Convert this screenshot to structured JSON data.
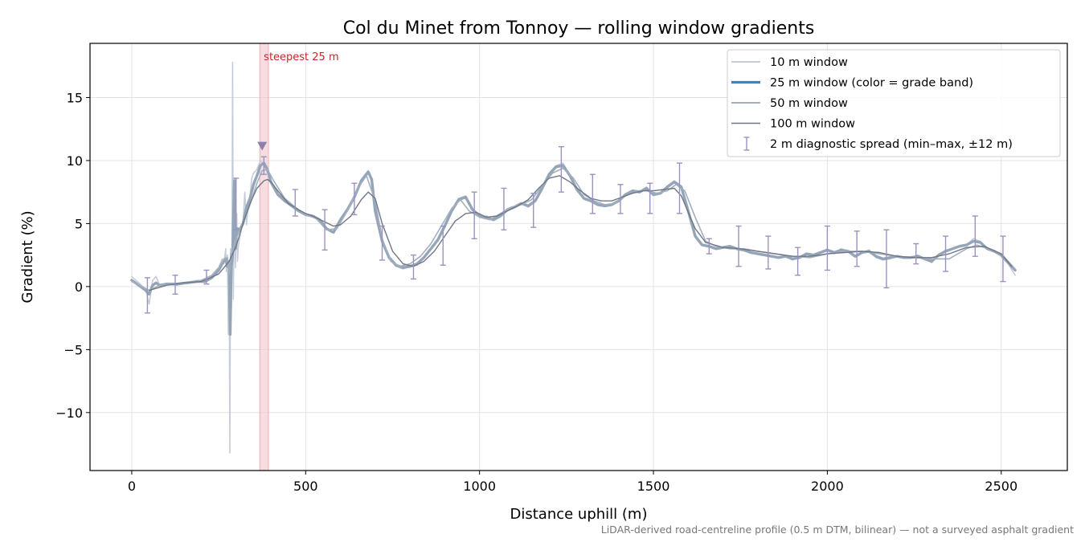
{
  "chart_data": {
    "type": "line",
    "title": "Col du Minet from Tonnoy — rolling window gradients",
    "xlabel": "Distance uphill (m)",
    "ylabel": "Gradient (%)",
    "xlim": [
      -120,
      2690
    ],
    "ylim": [
      -14.6,
      19.3
    ],
    "x_ticks": [
      0,
      500,
      1000,
      1500,
      2000,
      2500
    ],
    "x_tick_labels": [
      "0",
      "500",
      "1000",
      "1500",
      "2000",
      "2500"
    ],
    "y_ticks": [
      -10,
      -5,
      0,
      5,
      10,
      15
    ],
    "y_tick_labels": [
      "−10",
      "−5",
      "0",
      "5",
      "10",
      "15"
    ],
    "grid": true,
    "legend_position": "top-right",
    "note": "LiDAR-derived road-centreline profile (0.5 m DTM, bilinear) — not a surveyed asphalt gradient",
    "steepest_label": "steepest 25 m",
    "steepest_band": [
      368,
      393
    ],
    "steepest_marker": {
      "x": 375,
      "y": 11.1
    },
    "colors": {
      "w10": "#c5cdd8",
      "w25": "#3b7dd8",
      "w25_drawn": "#95a5b8",
      "w50": "#a3aebf",
      "w100": "#6f7786",
      "errorbar": "#9a92bf",
      "band": "#f4c7cb",
      "marker": "#8e80ad"
    },
    "series": [
      {
        "name": "10 m window",
        "key": "w10",
        "x": [
          0,
          20,
          40,
          50,
          60,
          70,
          80,
          100,
          130,
          160,
          190,
          210,
          230,
          240,
          250,
          260,
          265,
          270,
          272,
          275,
          278,
          280,
          282,
          284,
          286,
          288,
          290,
          292,
          294,
          296,
          298,
          300,
          302,
          304,
          306,
          308,
          310,
          315,
          320,
          325,
          330,
          335,
          340,
          345,
          350,
          360,
          370,
          380,
          390,
          400,
          420,
          440,
          460,
          480,
          500,
          520,
          540,
          560,
          580,
          600,
          620,
          640,
          660,
          680,
          690,
          700,
          720,
          740,
          760,
          780,
          800,
          820,
          840,
          860,
          880,
          900,
          920,
          940,
          960,
          980,
          1000,
          1020,
          1040,
          1060,
          1080,
          1100,
          1120,
          1140,
          1160,
          1180,
          1200,
          1220,
          1240,
          1260,
          1280,
          1300,
          1320,
          1340,
          1360,
          1380,
          1400,
          1420,
          1440,
          1460,
          1480,
          1500,
          1520,
          1540,
          1560,
          1580,
          1600,
          1620,
          1640,
          1660,
          1680,
          1700,
          1720,
          1740,
          1760,
          1780,
          1800,
          1820,
          1840,
          1860,
          1880,
          1900,
          1920,
          1940,
          1960,
          1980,
          2000,
          2020,
          2040,
          2060,
          2080,
          2100,
          2120,
          2140,
          2160,
          2180,
          2200,
          2220,
          2240,
          2260,
          2280,
          2300,
          2320,
          2340,
          2360,
          2380,
          2400,
          2420,
          2440,
          2460,
          2480,
          2500,
          2520,
          2540
        ],
        "y": [
          0.8,
          0.3,
          -0.2,
          -1.4,
          0.5,
          0.8,
          0.1,
          0.2,
          0.1,
          0.3,
          0.5,
          0.3,
          0.8,
          1.2,
          1.5,
          2.2,
          1.8,
          3.0,
          1.2,
          2.5,
          -3.8,
          2.0,
          -13.2,
          3.0,
          -2.5,
          2.0,
          17.8,
          -1.0,
          4.5,
          8.6,
          1.5,
          4.8,
          5.8,
          2.0,
          3.0,
          3.5,
          3.8,
          4.5,
          5.0,
          7.5,
          4.9,
          6.5,
          7.2,
          8.6,
          9.0,
          9.3,
          10.0,
          9.6,
          9.1,
          8.3,
          7.3,
          6.8,
          6.5,
          6.0,
          5.7,
          5.6,
          5.3,
          4.6,
          4.3,
          5.4,
          6.2,
          7.1,
          8.5,
          9.2,
          8.5,
          6.0,
          3.5,
          2.2,
          1.6,
          1.4,
          1.6,
          1.7,
          2.3,
          3.0,
          3.6,
          4.8,
          6.0,
          7.0,
          7.2,
          6.1,
          5.5,
          5.6,
          5.3,
          5.6,
          6.2,
          6.3,
          6.6,
          6.3,
          6.8,
          7.8,
          9.0,
          9.6,
          9.8,
          8.8,
          7.7,
          7.0,
          6.8,
          6.5,
          6.4,
          6.5,
          6.8,
          7.3,
          7.6,
          7.5,
          7.9,
          7.2,
          7.4,
          8.0,
          8.4,
          8.0,
          6.0,
          4.0,
          3.3,
          3.2,
          3.0,
          3.1,
          3.2,
          3.0,
          2.9,
          2.7,
          2.6,
          2.5,
          2.4,
          2.3,
          2.4,
          2.1,
          2.3,
          2.6,
          2.5,
          2.7,
          2.9,
          2.6,
          3.0,
          2.8,
          2.4,
          2.7,
          2.9,
          2.3,
          2.1,
          2.2,
          2.4,
          2.3,
          2.3,
          2.5,
          2.2,
          1.9,
          2.5,
          2.8,
          3.0,
          3.2,
          3.3,
          3.8,
          3.6,
          3.0,
          2.8,
          2.4,
          1.8,
          0.9
        ]
      },
      {
        "name": "25 m window (color = grade band)",
        "key": "w25",
        "x": [
          0,
          20,
          40,
          50,
          60,
          70,
          80,
          100,
          130,
          160,
          190,
          210,
          230,
          240,
          250,
          260,
          265,
          270,
          275,
          280,
          283,
          286,
          290,
          295,
          298,
          300,
          305,
          310,
          320,
          330,
          340,
          350,
          360,
          370,
          380,
          390,
          400,
          420,
          440,
          460,
          480,
          500,
          520,
          540,
          560,
          580,
          600,
          620,
          640,
          660,
          680,
          690,
          700,
          720,
          740,
          760,
          780,
          800,
          820,
          840,
          860,
          880,
          900,
          920,
          940,
          960,
          980,
          1000,
          1020,
          1040,
          1060,
          1080,
          1100,
          1120,
          1140,
          1160,
          1180,
          1200,
          1220,
          1240,
          1260,
          1280,
          1300,
          1320,
          1340,
          1360,
          1380,
          1400,
          1420,
          1440,
          1460,
          1480,
          1500,
          1520,
          1540,
          1560,
          1580,
          1600,
          1620,
          1640,
          1660,
          1680,
          1700,
          1720,
          1740,
          1760,
          1780,
          1800,
          1820,
          1840,
          1860,
          1880,
          1900,
          1920,
          1940,
          1960,
          1980,
          2000,
          2020,
          2040,
          2060,
          2080,
          2100,
          2120,
          2140,
          2160,
          2180,
          2200,
          2220,
          2240,
          2260,
          2280,
          2300,
          2320,
          2340,
          2360,
          2380,
          2400,
          2420,
          2440,
          2460,
          2480,
          2500,
          2520,
          2540
        ],
        "y": [
          0.5,
          0.1,
          -0.3,
          -0.6,
          0.1,
          0.3,
          0.1,
          0.2,
          0.2,
          0.3,
          0.4,
          0.4,
          0.7,
          1.0,
          1.3,
          1.8,
          2.0,
          2.2,
          1.6,
          2.0,
          -3.8,
          1.5,
          2.5,
          8.4,
          3.0,
          4.0,
          4.6,
          4.5,
          5.0,
          6.3,
          7.0,
          8.1,
          8.8,
          9.6,
          9.8,
          9.3,
          8.3,
          7.3,
          6.8,
          6.4,
          6.0,
          5.7,
          5.6,
          5.3,
          4.6,
          4.3,
          5.3,
          6.1,
          7.1,
          8.4,
          9.1,
          8.5,
          6.0,
          3.6,
          2.3,
          1.7,
          1.5,
          1.6,
          1.8,
          2.3,
          3.0,
          3.7,
          4.8,
          6.0,
          6.9,
          7.1,
          6.1,
          5.6,
          5.5,
          5.3,
          5.6,
          6.1,
          6.3,
          6.6,
          6.4,
          6.8,
          7.8,
          8.9,
          9.5,
          9.6,
          8.8,
          7.7,
          7.0,
          6.8,
          6.5,
          6.4,
          6.5,
          6.8,
          7.3,
          7.6,
          7.5,
          7.8,
          7.3,
          7.4,
          7.9,
          8.3,
          7.9,
          6.0,
          4.0,
          3.3,
          3.2,
          3.0,
          3.1,
          3.2,
          3.0,
          2.9,
          2.7,
          2.6,
          2.5,
          2.4,
          2.3,
          2.4,
          2.2,
          2.3,
          2.6,
          2.5,
          2.7,
          2.9,
          2.7,
          2.9,
          2.8,
          2.4,
          2.7,
          2.8,
          2.4,
          2.2,
          2.3,
          2.4,
          2.3,
          2.3,
          2.4,
          2.2,
          2.0,
          2.5,
          2.8,
          3.0,
          3.2,
          3.3,
          3.6,
          3.5,
          3.0,
          2.8,
          2.5,
          1.9,
          1.3
        ]
      },
      {
        "name": "50 m window",
        "key": "w50",
        "x": [
          0,
          30,
          50,
          80,
          120,
          160,
          200,
          230,
          250,
          265,
          275,
          280,
          285,
          290,
          295,
          300,
          310,
          320,
          340,
          360,
          375,
          390,
          410,
          440,
          470,
          500,
          530,
          560,
          590,
          620,
          650,
          675,
          700,
          720,
          745,
          770,
          800,
          830,
          860,
          890,
          920,
          945,
          970,
          1000,
          1030,
          1060,
          1090,
          1120,
          1150,
          1180,
          1210,
          1240,
          1270,
          1300,
          1330,
          1360,
          1390,
          1420,
          1450,
          1480,
          1510,
          1540,
          1565,
          1590,
          1620,
          1650,
          1680,
          1720,
          1760,
          1800,
          1850,
          1900,
          1950,
          2000,
          2050,
          2100,
          2150,
          2200,
          2250,
          2300,
          2350,
          2400,
          2430,
          2460,
          2500,
          2540
        ],
        "y": [
          0.4,
          0.0,
          -0.3,
          0.1,
          0.2,
          0.3,
          0.5,
          0.9,
          1.5,
          2.2,
          2.3,
          1.0,
          2.6,
          2.8,
          3.4,
          3.8,
          4.4,
          5.0,
          6.5,
          8.2,
          9.2,
          9.3,
          8.3,
          7.0,
          6.3,
          5.7,
          5.4,
          4.5,
          4.6,
          6.0,
          7.8,
          8.8,
          6.8,
          3.8,
          2.0,
          1.6,
          1.8,
          2.4,
          3.4,
          4.8,
          6.2,
          6.9,
          6.0,
          5.5,
          5.3,
          5.8,
          6.3,
          6.5,
          6.9,
          8.0,
          9.0,
          9.4,
          8.6,
          7.3,
          6.8,
          6.5,
          6.6,
          7.2,
          7.6,
          7.6,
          7.4,
          7.6,
          8.1,
          7.6,
          5.5,
          3.6,
          3.2,
          3.0,
          3.0,
          2.8,
          2.6,
          2.4,
          2.3,
          2.6,
          2.8,
          2.8,
          2.6,
          2.4,
          2.3,
          2.2,
          2.2,
          3.0,
          3.3,
          3.0,
          2.6,
          1.4
        ]
      },
      {
        "name": "100 m window",
        "key": "w100",
        "x": [
          50,
          100,
          150,
          200,
          250,
          280,
          300,
          320,
          340,
          360,
          380,
          390,
          400,
          420,
          450,
          480,
          500,
          520,
          550,
          580,
          600,
          630,
          660,
          680,
          700,
          720,
          750,
          780,
          810,
          840,
          870,
          900,
          930,
          960,
          990,
          1020,
          1050,
          1080,
          1110,
          1140,
          1170,
          1200,
          1230,
          1260,
          1290,
          1320,
          1350,
          1380,
          1410,
          1440,
          1470,
          1500,
          1530,
          1560,
          1580,
          1600,
          1620,
          1650,
          1700,
          1750,
          1800,
          1850,
          1900,
          1950,
          2000,
          2050,
          2100,
          2150,
          2200,
          2250,
          2300,
          2350,
          2400,
          2450,
          2500,
          2530
        ],
        "y": [
          -0.3,
          0.1,
          0.3,
          0.4,
          1.0,
          2.0,
          3.2,
          5.0,
          6.6,
          7.8,
          8.4,
          8.5,
          8.3,
          7.6,
          6.6,
          6.1,
          5.8,
          5.6,
          5.2,
          4.8,
          4.9,
          5.6,
          6.9,
          7.5,
          7.0,
          5.0,
          2.8,
          1.8,
          1.6,
          2.0,
          2.8,
          4.0,
          5.2,
          5.8,
          5.9,
          5.5,
          5.6,
          6.0,
          6.4,
          6.9,
          7.8,
          8.6,
          8.8,
          8.3,
          7.6,
          7.0,
          6.8,
          6.8,
          7.1,
          7.4,
          7.6,
          7.6,
          7.7,
          7.8,
          7.2,
          5.9,
          4.6,
          3.5,
          3.1,
          3.0,
          2.8,
          2.6,
          2.4,
          2.4,
          2.6,
          2.7,
          2.8,
          2.7,
          2.4,
          2.3,
          2.3,
          2.6,
          3.1,
          3.2,
          2.6,
          1.6
        ]
      },
      {
        "name": "2 m diagnostic spread (min–max, ±12 m)",
        "key": "errorbar",
        "x": [
          45,
          125,
          215,
          300,
          380,
          470,
          555,
          640,
          720,
          810,
          895,
          985,
          1070,
          1155,
          1235,
          1325,
          1405,
          1490,
          1575,
          1660,
          1745,
          1830,
          1915,
          2000,
          2085,
          2170,
          2255,
          2340,
          2425,
          2505
        ],
        "low": [
          -2.1,
          -0.6,
          0.2,
          4.5,
          8.9,
          5.6,
          2.9,
          5.7,
          2.1,
          0.6,
          1.7,
          3.8,
          4.5,
          4.7,
          7.5,
          5.8,
          5.8,
          5.8,
          5.8,
          2.6,
          1.6,
          1.4,
          0.9,
          1.3,
          1.6,
          -0.1,
          1.8,
          1.2,
          2.4,
          0.4
        ],
        "high": [
          0.7,
          0.9,
          1.3,
          8.6,
          10.3,
          7.7,
          6.1,
          8.2,
          4.8,
          2.5,
          4.8,
          7.5,
          7.8,
          7.4,
          11.1,
          8.9,
          8.1,
          8.2,
          9.8,
          3.8,
          4.8,
          4.0,
          3.1,
          4.8,
          4.4,
          4.5,
          3.4,
          4.0,
          5.6,
          4.0
        ]
      }
    ]
  }
}
